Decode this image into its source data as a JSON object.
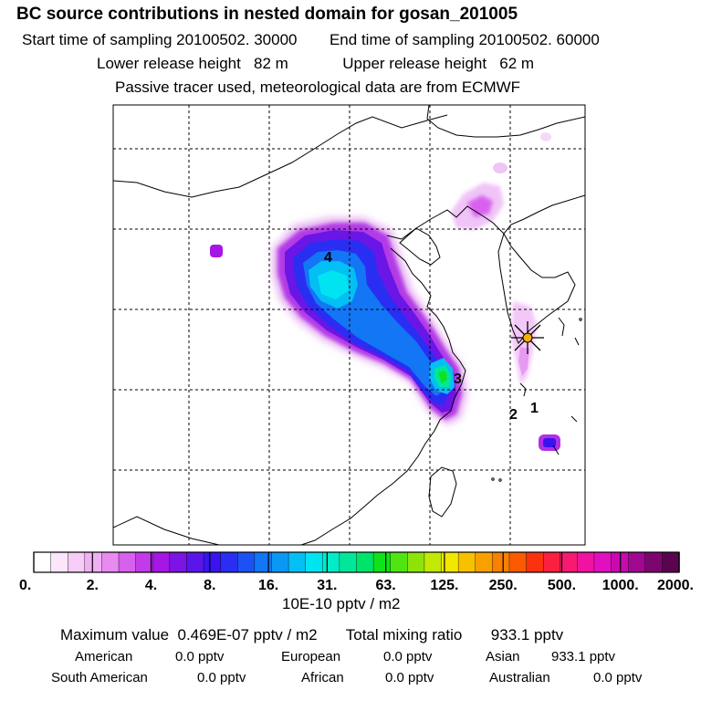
{
  "title": "BC  source contributions in nested domain for gosan_201005",
  "sampling": {
    "start_label": "Start time of sampling",
    "start_value": "20100502. 30000",
    "end_label": "End time of sampling",
    "end_value": "20100502. 60000"
  },
  "release": {
    "lower_label": "Lower release height",
    "lower_value": "82 m",
    "upper_label": "Upper release height",
    "upper_value": "62 m"
  },
  "note": "Passive tracer used, meteorological data are from ECMWF",
  "map": {
    "markers": [
      "1",
      "2",
      "3",
      "4"
    ],
    "receptor_symbol": "star"
  },
  "colorbar": {
    "tick_labels": [
      "0.",
      "2.",
      "4.",
      "8.",
      "16.",
      "31.",
      "63.",
      "125.",
      "250.",
      "500.",
      "1000.",
      "2000."
    ],
    "units": "10E-10 pptv / m2",
    "colors": [
      "#ffffff",
      "#fbe6fb",
      "#f6ccf8",
      "#f0b0f4",
      "#e98af1",
      "#d860ee",
      "#c23ae9",
      "#a617e6",
      "#7b14e4",
      "#5a16e8",
      "#3a14ee",
      "#2a2ef2",
      "#1c52f4",
      "#1276f5",
      "#0a98f5",
      "#04bff4",
      "#00e4f2",
      "#00ecc8",
      "#00e79a",
      "#00e36a",
      "#10e21a",
      "#52e410",
      "#8ee40a",
      "#c2e806",
      "#f0e800",
      "#f8c000",
      "#f9a000",
      "#fa8000",
      "#fb5a00",
      "#fb3210",
      "#fb2040",
      "#f81a70",
      "#f012a0",
      "#e010c0",
      "#c80ab0",
      "#a00890",
      "#7c0670",
      "#5a0450"
    ]
  },
  "stats": {
    "max_label": "Maximum value",
    "max_value": "0.469E-07 pptv / m2",
    "total_label": "Total mixing ratio",
    "total_value": "933.1 pptv",
    "regions": [
      {
        "name": "American",
        "value": "0.0 pptv"
      },
      {
        "name": "European",
        "value": "0.0 pptv"
      },
      {
        "name": "Asian",
        "value": "933.1 pptv"
      },
      {
        "name": "South American",
        "value": "0.0 pptv"
      },
      {
        "name": "African",
        "value": "0.0 pptv"
      },
      {
        "name": "Australian",
        "value": "0.0 pptv"
      }
    ]
  }
}
